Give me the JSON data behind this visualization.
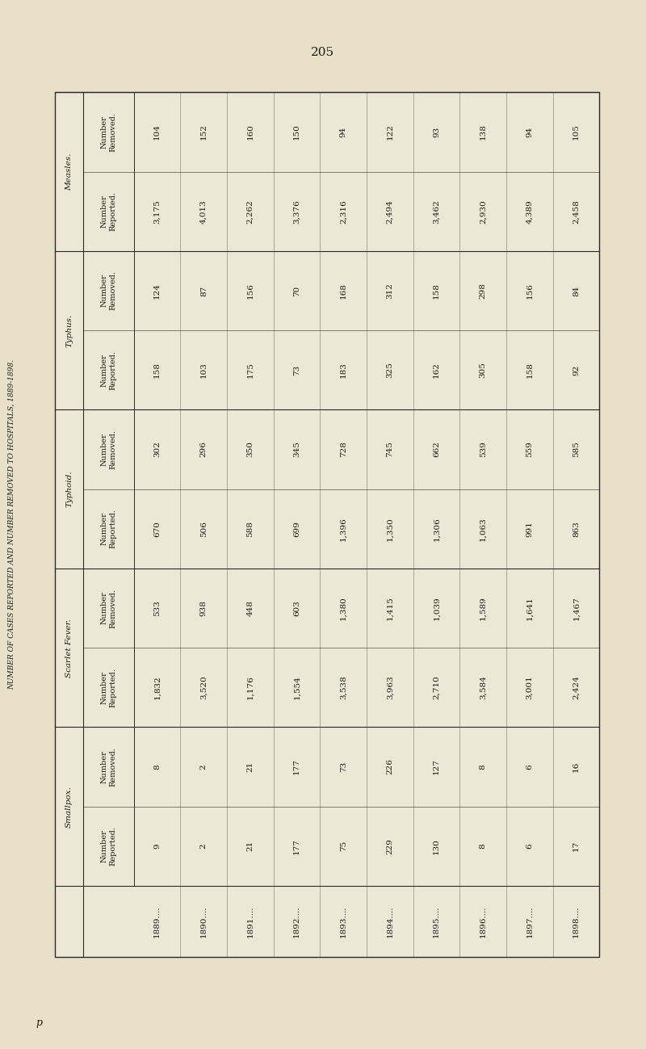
{
  "page_number": "205",
  "side_title": "NUMBER OF CASES REPORTED AND NUMBER REMOVED TO HOSPITALS, 1889-1898.",
  "years": [
    "1889....",
    "1890....",
    "1891....",
    "1892....",
    "1893....",
    "1894....",
    "1895....",
    "1896....",
    "1897....",
    "1898...."
  ],
  "groups": [
    {
      "name": "Smallpox.",
      "reported": [
        "9",
        "2",
        "21",
        "177",
        "75",
        "229",
        "130",
        "8",
        "6",
        "17"
      ],
      "removed": [
        "8",
        "2",
        "21",
        "177",
        "73",
        "226",
        "127",
        "8",
        "6",
        "16"
      ]
    },
    {
      "name": "Scarlet Fever.",
      "reported": [
        "1,832",
        "3,520",
        "1,176",
        "1,554",
        "3,538",
        "3,963",
        "2,710",
        "3,584",
        "3,001",
        "2,424"
      ],
      "removed": [
        "533",
        "938",
        "448",
        "603",
        "1,380",
        "1,415",
        "1,039",
        "1,589",
        "1,641",
        "1,467"
      ]
    },
    {
      "name": "Typhoid.",
      "reported": [
        "670",
        "506",
        "588",
        "699",
        "1,396",
        "1,350",
        "1,306",
        "1,063",
        "991",
        "863"
      ],
      "removed": [
        "302",
        "296",
        "350",
        "345",
        "728",
        "745",
        "662",
        "539",
        "559",
        "585"
      ]
    },
    {
      "name": "Typhus.",
      "reported": [
        "158",
        "103",
        "175",
        "73",
        "183",
        "325",
        "162",
        "305",
        "158",
        "92"
      ],
      "removed": [
        "124",
        "87",
        "156",
        "70",
        "168",
        "312",
        "158",
        "298",
        "156",
        "84"
      ]
    },
    {
      "name": "Measles.",
      "reported": [
        "3,175",
        "4,013",
        "2,262",
        "3,376",
        "2,316",
        "2,494",
        "3,462",
        "2,930",
        "4,389",
        "2,458"
      ],
      "removed": [
        "104",
        "152",
        "160",
        "150",
        "94",
        "122",
        "93",
        "138",
        "94",
        "105"
      ]
    }
  ],
  "bg_color": "#ede8d5",
  "text_color": "#1a1a1a",
  "line_color": "#2a2a2a",
  "page_bg": "#e8e0c8"
}
